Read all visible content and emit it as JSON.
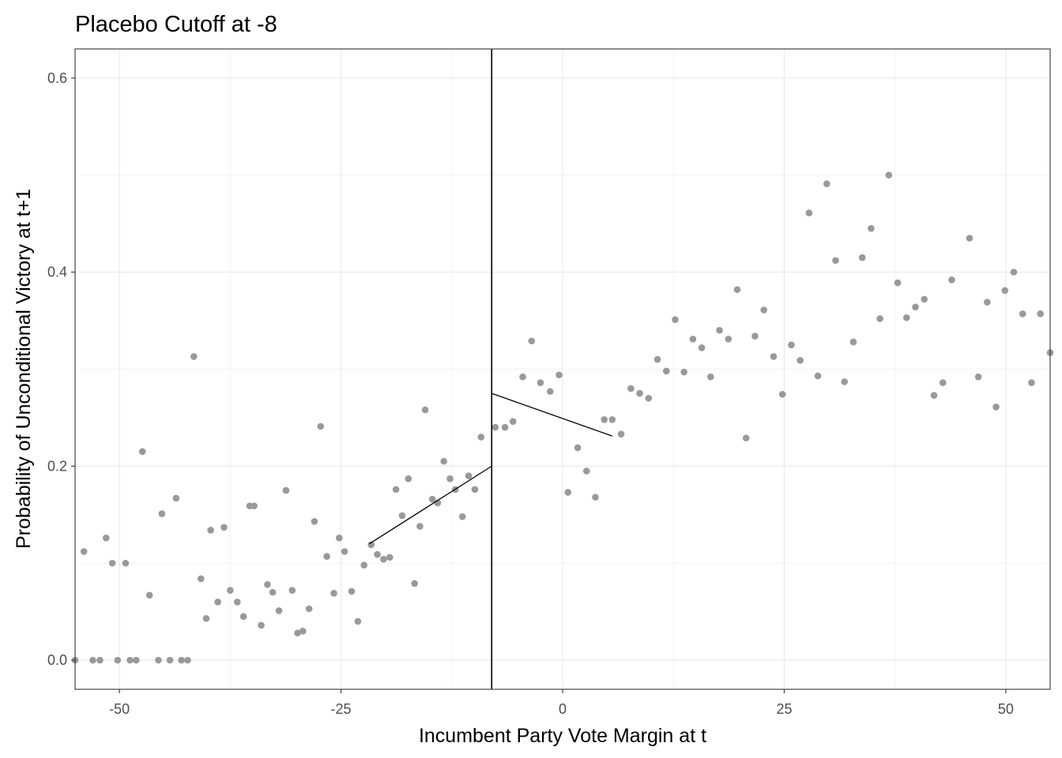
{
  "chart_data": {
    "type": "scatter",
    "title": "Placebo Cutoff at -8",
    "xlabel": "Incumbent Party Vote Margin at t",
    "ylabel": "Probability of Unconditional Victory at t+1",
    "xlim": [
      -55,
      55
    ],
    "ylim": [
      -0.03,
      0.63
    ],
    "xticks": [
      -50,
      -25,
      0,
      25,
      50
    ],
    "xtick_labels": [
      "-50",
      "-25",
      "0",
      "25",
      "50"
    ],
    "yticks": [
      0.0,
      0.2,
      0.4,
      0.6
    ],
    "ytick_labels": [
      "0.0",
      "0.2",
      "0.4",
      "0.6"
    ],
    "grid": true,
    "cutoff": -8,
    "point_color": "#999999",
    "points": [
      {
        "x": -55,
        "y": 0.0
      },
      {
        "x": -54,
        "y": 0.112
      },
      {
        "x": -53,
        "y": 0.0
      },
      {
        "x": -52.2,
        "y": 0.0
      },
      {
        "x": -51.5,
        "y": 0.126
      },
      {
        "x": -50.8,
        "y": 0.1
      },
      {
        "x": -50.2,
        "y": 0.0
      },
      {
        "x": -49.3,
        "y": 0.1
      },
      {
        "x": -48.8,
        "y": 0.0
      },
      {
        "x": -48.1,
        "y": 0.0
      },
      {
        "x": -47.4,
        "y": 0.215
      },
      {
        "x": -46.6,
        "y": 0.067
      },
      {
        "x": -45.6,
        "y": 0.0
      },
      {
        "x": -45.2,
        "y": 0.151
      },
      {
        "x": -44.3,
        "y": 0.0
      },
      {
        "x": -43.6,
        "y": 0.167
      },
      {
        "x": -43.0,
        "y": 0.0
      },
      {
        "x": -42.3,
        "y": 0.0
      },
      {
        "x": -41.6,
        "y": 0.313
      },
      {
        "x": -40.8,
        "y": 0.084
      },
      {
        "x": -40.2,
        "y": 0.043
      },
      {
        "x": -39.7,
        "y": 0.134
      },
      {
        "x": -38.9,
        "y": 0.06
      },
      {
        "x": -38.2,
        "y": 0.137
      },
      {
        "x": -37.5,
        "y": 0.072
      },
      {
        "x": -36.7,
        "y": 0.06
      },
      {
        "x": -36.0,
        "y": 0.045
      },
      {
        "x": -35.3,
        "y": 0.159
      },
      {
        "x": -34.8,
        "y": 0.159
      },
      {
        "x": -34.0,
        "y": 0.036
      },
      {
        "x": -33.3,
        "y": 0.078
      },
      {
        "x": -32.7,
        "y": 0.07
      },
      {
        "x": -32.0,
        "y": 0.051
      },
      {
        "x": -31.2,
        "y": 0.175
      },
      {
        "x": -30.5,
        "y": 0.072
      },
      {
        "x": -29.9,
        "y": 0.028
      },
      {
        "x": -29.3,
        "y": 0.03
      },
      {
        "x": -28.6,
        "y": 0.053
      },
      {
        "x": -28.0,
        "y": 0.143
      },
      {
        "x": -27.3,
        "y": 0.241
      },
      {
        "x": -26.6,
        "y": 0.107
      },
      {
        "x": -25.8,
        "y": 0.069
      },
      {
        "x": -25.2,
        "y": 0.126
      },
      {
        "x": -24.6,
        "y": 0.112
      },
      {
        "x": -23.8,
        "y": 0.071
      },
      {
        "x": -23.1,
        "y": 0.04
      },
      {
        "x": -22.4,
        "y": 0.098
      },
      {
        "x": -21.6,
        "y": 0.119
      },
      {
        "x": -20.9,
        "y": 0.109
      },
      {
        "x": -20.2,
        "y": 0.104
      },
      {
        "x": -19.5,
        "y": 0.106
      },
      {
        "x": -18.8,
        "y": 0.176
      },
      {
        "x": -18.1,
        "y": 0.149
      },
      {
        "x": -17.4,
        "y": 0.187
      },
      {
        "x": -16.7,
        "y": 0.079
      },
      {
        "x": -16.1,
        "y": 0.138
      },
      {
        "x": -15.5,
        "y": 0.258
      },
      {
        "x": -14.7,
        "y": 0.166
      },
      {
        "x": -14.1,
        "y": 0.162
      },
      {
        "x": -13.4,
        "y": 0.205
      },
      {
        "x": -12.7,
        "y": 0.187
      },
      {
        "x": -12.1,
        "y": 0.176
      },
      {
        "x": -11.3,
        "y": 0.148
      },
      {
        "x": -10.6,
        "y": 0.19
      },
      {
        "x": -9.9,
        "y": 0.176
      },
      {
        "x": -9.2,
        "y": 0.23
      },
      {
        "x": -7.6,
        "y": 0.24
      },
      {
        "x": -6.5,
        "y": 0.24
      },
      {
        "x": -5.6,
        "y": 0.246
      },
      {
        "x": -4.5,
        "y": 0.292
      },
      {
        "x": -3.5,
        "y": 0.329
      },
      {
        "x": -2.5,
        "y": 0.286
      },
      {
        "x": -1.4,
        "y": 0.277
      },
      {
        "x": -0.4,
        "y": 0.294
      },
      {
        "x": 0.6,
        "y": 0.173
      },
      {
        "x": 1.7,
        "y": 0.219
      },
      {
        "x": 2.7,
        "y": 0.195
      },
      {
        "x": 3.7,
        "y": 0.168
      },
      {
        "x": 4.7,
        "y": 0.248
      },
      {
        "x": 5.6,
        "y": 0.248
      },
      {
        "x": 6.6,
        "y": 0.233
      },
      {
        "x": 7.7,
        "y": 0.28
      },
      {
        "x": 8.7,
        "y": 0.275
      },
      {
        "x": 9.7,
        "y": 0.27
      },
      {
        "x": 10.7,
        "y": 0.31
      },
      {
        "x": 11.7,
        "y": 0.298
      },
      {
        "x": 12.7,
        "y": 0.351
      },
      {
        "x": 13.7,
        "y": 0.297
      },
      {
        "x": 14.7,
        "y": 0.331
      },
      {
        "x": 15.7,
        "y": 0.322
      },
      {
        "x": 16.7,
        "y": 0.292
      },
      {
        "x": 17.7,
        "y": 0.34
      },
      {
        "x": 18.7,
        "y": 0.331
      },
      {
        "x": 19.7,
        "y": 0.382
      },
      {
        "x": 20.7,
        "y": 0.229
      },
      {
        "x": 21.7,
        "y": 0.334
      },
      {
        "x": 22.7,
        "y": 0.361
      },
      {
        "x": 23.8,
        "y": 0.313
      },
      {
        "x": 24.8,
        "y": 0.274
      },
      {
        "x": 25.8,
        "y": 0.325
      },
      {
        "x": 26.8,
        "y": 0.309
      },
      {
        "x": 27.8,
        "y": 0.461
      },
      {
        "x": 28.8,
        "y": 0.293
      },
      {
        "x": 29.8,
        "y": 0.491
      },
      {
        "x": 30.8,
        "y": 0.412
      },
      {
        "x": 31.8,
        "y": 0.287
      },
      {
        "x": 32.8,
        "y": 0.328
      },
      {
        "x": 33.8,
        "y": 0.415
      },
      {
        "x": 34.8,
        "y": 0.445
      },
      {
        "x": 35.8,
        "y": 0.352
      },
      {
        "x": 36.8,
        "y": 0.5
      },
      {
        "x": 37.8,
        "y": 0.389
      },
      {
        "x": 38.8,
        "y": 0.353
      },
      {
        "x": 39.8,
        "y": 0.364
      },
      {
        "x": 40.8,
        "y": 0.372
      },
      {
        "x": 41.9,
        "y": 0.273
      },
      {
        "x": 42.9,
        "y": 0.286
      },
      {
        "x": 43.9,
        "y": 0.392
      },
      {
        "x": 45.9,
        "y": 0.435
      },
      {
        "x": 46.9,
        "y": 0.292
      },
      {
        "x": 47.9,
        "y": 0.369
      },
      {
        "x": 48.9,
        "y": 0.261
      },
      {
        "x": 49.9,
        "y": 0.381
      },
      {
        "x": 50.9,
        "y": 0.4
      },
      {
        "x": 51.9,
        "y": 0.357
      },
      {
        "x": 52.9,
        "y": 0.286
      },
      {
        "x": 53.9,
        "y": 0.357
      },
      {
        "x": 55.0,
        "y": 0.317
      }
    ],
    "fit_lines": [
      {
        "x": [
          -21.8,
          -8
        ],
        "y": [
          0.12,
          0.2
        ]
      },
      {
        "x": [
          -8,
          5.6
        ],
        "y": [
          0.275,
          0.231
        ]
      }
    ]
  }
}
